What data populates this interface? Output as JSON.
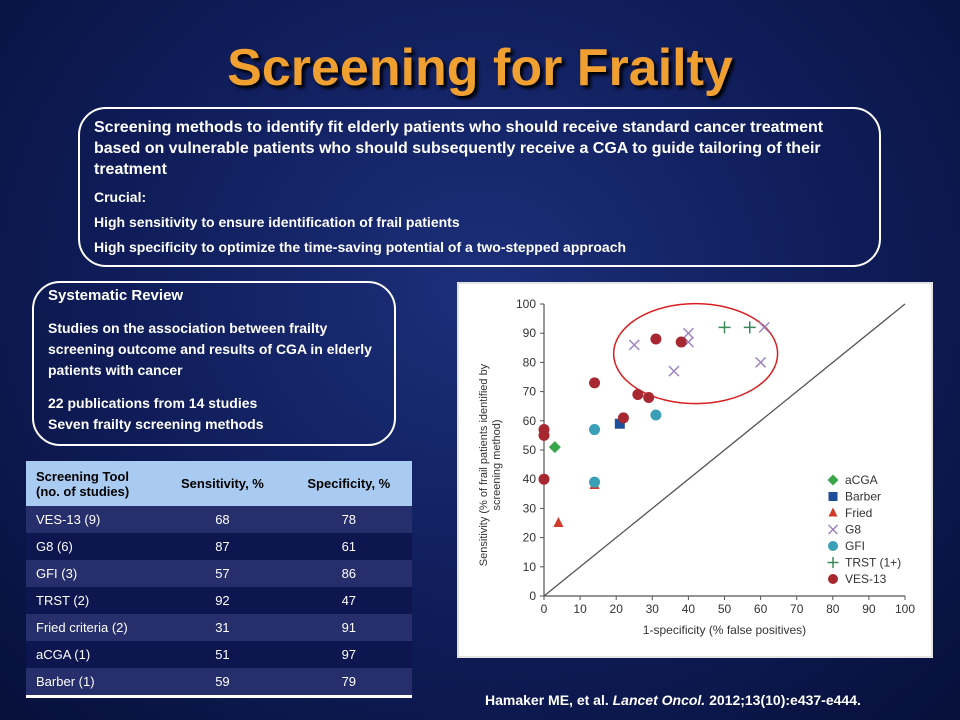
{
  "slide": {
    "title": "Screening for Frailty",
    "box1": {
      "intro": "Screening methods to identify fit elderly patients who should receive standard cancer treatment based on vulnerable patients who should subsequently receive a CGA to guide tailoring of their treatment",
      "crucial": "Crucial:",
      "sensitivity": "High sensitivity to ensure identification of frail patients",
      "specificity": "High specificity to optimize the time-saving potential of a two-stepped approach"
    },
    "box2": {
      "heading": "Systematic Review",
      "studies": "Studies on the association between frailty screening outcome and results of CGA in elderly patients with cancer",
      "publications": "22 publications from 14 studies",
      "methods": "Seven frailty screening methods"
    },
    "table": {
      "headers": [
        "Screening Tool (no. of studies)",
        "Sensitivity, %",
        "Specificity, %"
      ],
      "rows": [
        [
          "VES-13 (9)",
          "68",
          "78"
        ],
        [
          "G8 (6)",
          "87",
          "61"
        ],
        [
          "GFI (3)",
          "57",
          "86"
        ],
        [
          "TRST (2)",
          "92",
          "47"
        ],
        [
          "Fried criteria (2)",
          "31",
          "91"
        ],
        [
          "aCGA (1)",
          "51",
          "97"
        ],
        [
          "Barber (1)",
          "59",
          "79"
        ]
      ]
    },
    "citation": {
      "authors": "Hamaker ME, et al.",
      "journal": "Lancet Oncol.",
      "ref": "2012;13(10):e437-e444."
    }
  },
  "chart_data": {
    "type": "scatter",
    "xlabel": "1-specificity (% false positives)",
    "ylabel": "Sensitivity (% of frail patients identified by screening method)",
    "xlim": [
      0,
      100
    ],
    "ylim": [
      0,
      100
    ],
    "xticks": [
      0,
      10,
      20,
      30,
      40,
      50,
      60,
      70,
      80,
      90,
      100
    ],
    "yticks": [
      0,
      10,
      20,
      30,
      40,
      50,
      60,
      70,
      80,
      90,
      100
    ],
    "grid": false,
    "legend_position": "right",
    "diagonal_reference_line": true,
    "highlight_ellipse": "upper region around G8, TRST and top VES-13 points",
    "series": [
      {
        "name": "aCGA",
        "marker": "diamond",
        "color": "#3aa64a",
        "points": [
          [
            3,
            51
          ]
        ]
      },
      {
        "name": "Barber",
        "marker": "square",
        "color": "#1f4e9a",
        "points": [
          [
            21,
            59
          ]
        ]
      },
      {
        "name": "Fried",
        "marker": "triangle",
        "color": "#d03a2a",
        "points": [
          [
            4,
            25
          ],
          [
            14,
            38
          ]
        ]
      },
      {
        "name": "G8",
        "marker": "x",
        "color": "#9a7fc0",
        "points": [
          [
            25,
            86
          ],
          [
            36,
            77
          ],
          [
            40,
            87
          ],
          [
            40,
            90
          ],
          [
            60,
            80
          ],
          [
            61,
            92
          ]
        ]
      },
      {
        "name": "GFI",
        "marker": "circle",
        "color": "#3aa0b8",
        "points": [
          [
            14,
            57
          ],
          [
            14,
            39
          ],
          [
            31,
            62
          ]
        ]
      },
      {
        "name": "TRST (1+)",
        "marker": "plus",
        "color": "#3a8a5a",
        "points": [
          [
            50,
            92
          ],
          [
            57,
            92
          ]
        ]
      },
      {
        "name": "VES-13",
        "marker": "circle",
        "color": "#a82832",
        "points": [
          [
            0,
            57
          ],
          [
            0,
            55
          ],
          [
            0,
            40
          ],
          [
            14,
            73
          ],
          [
            22,
            61
          ],
          [
            26,
            69
          ],
          [
            29,
            68
          ],
          [
            31,
            88
          ],
          [
            38,
            87
          ]
        ]
      }
    ]
  }
}
